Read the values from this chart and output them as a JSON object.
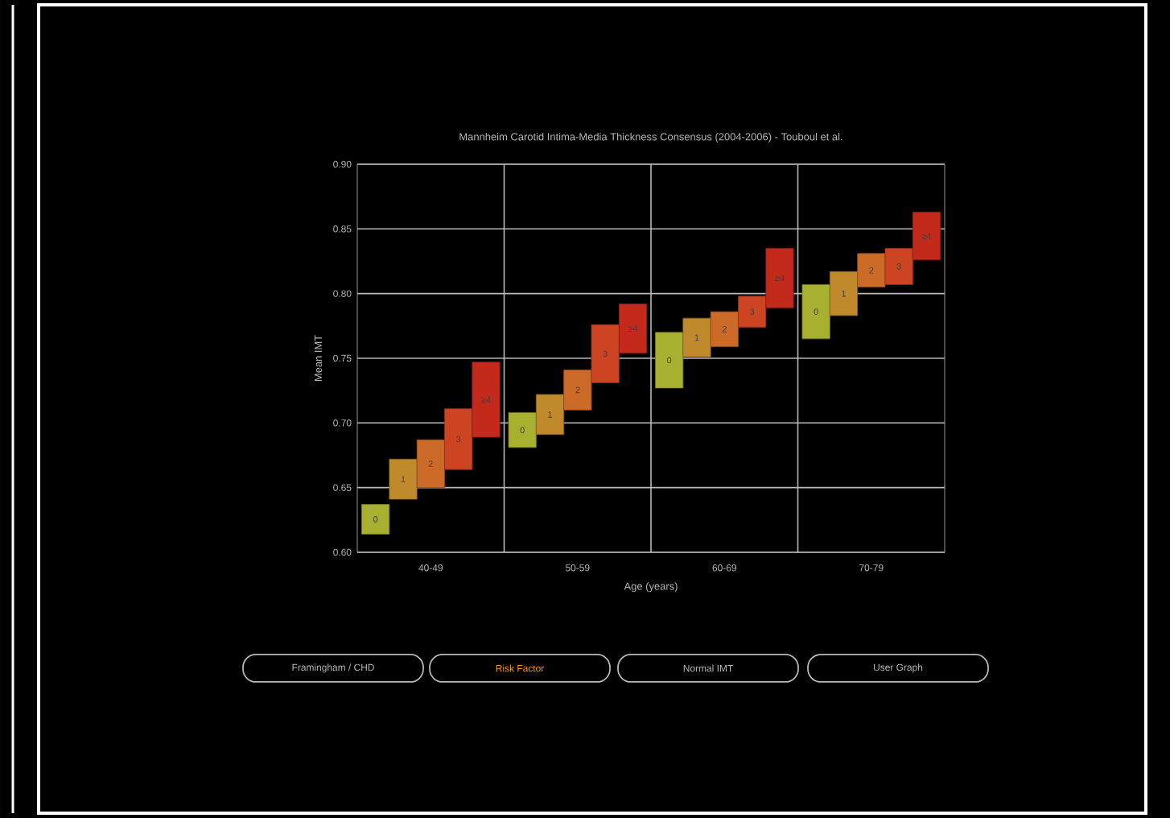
{
  "chart_data": {
    "type": "bar",
    "title": "Mannheim Carotid Intima-Media Thickness Consensus (2004-2006) - Touboul et al.",
    "xlabel": "Age (years)",
    "ylabel": "Mean IMT",
    "categories": [
      "40-49",
      "50-59",
      "60-69",
      "70-79"
    ],
    "series": [
      {
        "name": "0",
        "color": "#a8b030",
        "base": [
          0.614,
          0.681,
          0.727,
          0.765
        ],
        "values": [
          0.023,
          0.027,
          0.043,
          0.042
        ]
      },
      {
        "name": "1",
        "color": "#c08a2c",
        "base": [
          0.641,
          0.691,
          0.751,
          0.783
        ],
        "values": [
          0.031,
          0.031,
          0.03,
          0.034
        ]
      },
      {
        "name": "2",
        "color": "#cc6a28",
        "base": [
          0.65,
          0.71,
          0.759,
          0.805
        ],
        "values": [
          0.037,
          0.031,
          0.027,
          0.026
        ]
      },
      {
        "name": "3",
        "color": "#cc4422",
        "base": [
          0.664,
          0.731,
          0.774,
          0.807
        ],
        "values": [
          0.047,
          0.045,
          0.024,
          0.028
        ]
      },
      {
        "name": "≥4",
        "color": "#c42a1c",
        "base": [
          0.689,
          0.754,
          0.789,
          0.826
        ],
        "values": [
          0.058,
          0.038,
          0.046,
          0.037
        ]
      }
    ],
    "ylim": [
      0.6,
      0.9
    ],
    "yticks": [
      {
        "value": 0.6,
        "label": "0.60"
      },
      {
        "value": 0.65,
        "label": "0.65"
      },
      {
        "value": 0.7,
        "label": "0.70"
      },
      {
        "value": 0.75,
        "label": "0.75"
      },
      {
        "value": 0.8,
        "label": "0.80"
      },
      {
        "value": 0.85,
        "label": "0.85"
      },
      {
        "value": 0.9,
        "label": "0.90"
      }
    ],
    "grid": "y",
    "annotations": [
      "Framingham / CHD",
      "Risk Factor",
      "Normal IMT",
      "User Graph"
    ]
  }
}
